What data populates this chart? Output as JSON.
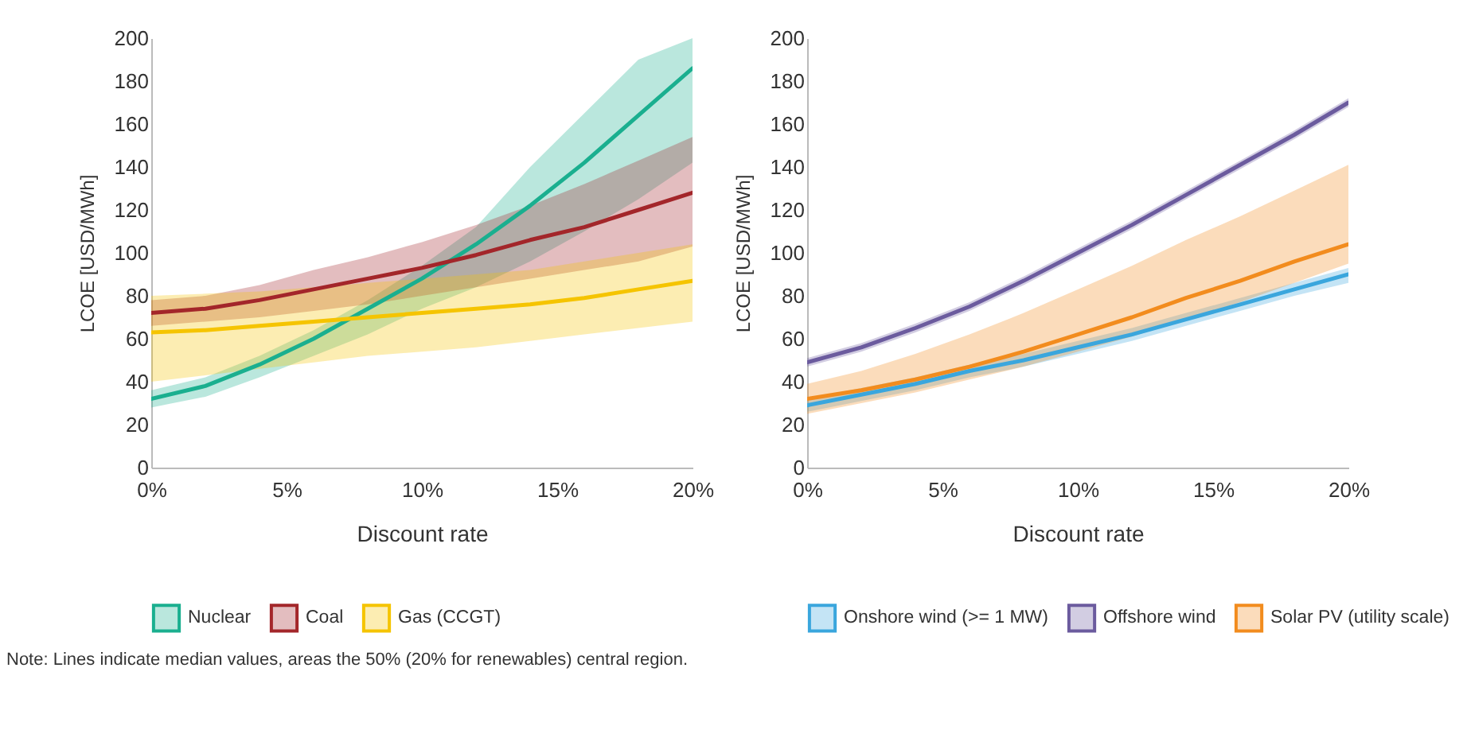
{
  "chart_data": [
    {
      "type": "line",
      "xlabel": "Discount rate",
      "ylabel": "LCOE [USD/MWh]",
      "x": [
        0,
        2,
        4,
        6,
        8,
        10,
        12,
        14,
        16,
        18,
        20
      ],
      "xlim": [
        0,
        20
      ],
      "xticks": [
        {
          "value": 0,
          "label": "0%"
        },
        {
          "value": 5,
          "label": "5%"
        },
        {
          "value": 10,
          "label": "10%"
        },
        {
          "value": 15,
          "label": "15%"
        },
        {
          "value": 20,
          "label": "20%"
        }
      ],
      "ylim": [
        0,
        200
      ],
      "yticks": [
        0,
        20,
        40,
        60,
        80,
        100,
        120,
        140,
        160,
        180,
        200
      ],
      "grid": false,
      "legend": "bottom",
      "series": [
        {
          "name": "Nuclear",
          "color": "#1aaf8f",
          "values": [
            32,
            38,
            48,
            60,
            74,
            88,
            104,
            122,
            142,
            164,
            186
          ],
          "lower": [
            28,
            33,
            42,
            52,
            62,
            74,
            84,
            96,
            110,
            125,
            142
          ],
          "upper": [
            36,
            42,
            52,
            64,
            78,
            94,
            112,
            140,
            165,
            190,
            200
          ]
        },
        {
          "name": "Coal",
          "color": "#a3262a",
          "values": [
            72,
            74,
            78,
            83,
            88,
            93,
            99,
            106,
            112,
            120,
            128
          ],
          "lower": [
            66,
            68,
            70,
            73,
            76,
            80,
            84,
            88,
            92,
            96,
            103
          ],
          "upper": [
            78,
            80,
            85,
            92,
            98,
            105,
            113,
            122,
            132,
            143,
            154
          ]
        },
        {
          "name": "Gas (CCGT)",
          "color": "#f5c400",
          "values": [
            63,
            64,
            66,
            68,
            70,
            72,
            74,
            76,
            79,
            83,
            87
          ],
          "lower": [
            40,
            43,
            46,
            49,
            52,
            54,
            56,
            59,
            62,
            65,
            68
          ],
          "upper": [
            80,
            81,
            82,
            84,
            86,
            88,
            90,
            92,
            96,
            100,
            104
          ]
        }
      ],
      "annotations": [
        "Note: Lines indicate median values, areas the 50% (20% for renewables) central region."
      ]
    },
    {
      "type": "line",
      "xlabel": "Discount rate",
      "ylabel": "LCOE [USD/MWh]",
      "x": [
        0,
        2,
        4,
        6,
        8,
        10,
        12,
        14,
        16,
        18,
        20
      ],
      "xlim": [
        0,
        20
      ],
      "xticks": [
        {
          "value": 0,
          "label": "0%"
        },
        {
          "value": 5,
          "label": "5%"
        },
        {
          "value": 10,
          "label": "10%"
        },
        {
          "value": 15,
          "label": "15%"
        },
        {
          "value": 20,
          "label": "20%"
        }
      ],
      "ylim": [
        0,
        200
      ],
      "yticks": [
        0,
        20,
        40,
        60,
        80,
        100,
        120,
        140,
        160,
        180,
        200
      ],
      "grid": false,
      "legend": "bottom",
      "series": [
        {
          "name": "Onshore wind (>= 1 MW)",
          "color": "#3aa6dd",
          "values": [
            29,
            34,
            39,
            45,
            50,
            56,
            62,
            69,
            76,
            83,
            90
          ],
          "lower": [
            26,
            31,
            36,
            42,
            47,
            53,
            59,
            66,
            73,
            80,
            86
          ],
          "upper": [
            32,
            37,
            42,
            48,
            53,
            59,
            65,
            72,
            79,
            86,
            93
          ]
        },
        {
          "name": "Offshore wind",
          "color": "#6b5b9e",
          "values": [
            49,
            56,
            65,
            75,
            87,
            100,
            113,
            127,
            141,
            155,
            170
          ],
          "lower": [
            47,
            54,
            63,
            73,
            85,
            98,
            111,
            125,
            139,
            153,
            168
          ],
          "upper": [
            51,
            58,
            67,
            77,
            89,
            102,
            115,
            129,
            143,
            157,
            172
          ]
        },
        {
          "name": "Solar PV (utility scale)",
          "color": "#f28c1e",
          "values": [
            32,
            36,
            41,
            47,
            54,
            62,
            70,
            79,
            87,
            96,
            104
          ],
          "lower": [
            25,
            30,
            35,
            41,
            47,
            54,
            61,
            69,
            77,
            86,
            95
          ],
          "upper": [
            39,
            45,
            53,
            62,
            72,
            83,
            94,
            106,
            117,
            129,
            141
          ]
        }
      ]
    }
  ]
}
